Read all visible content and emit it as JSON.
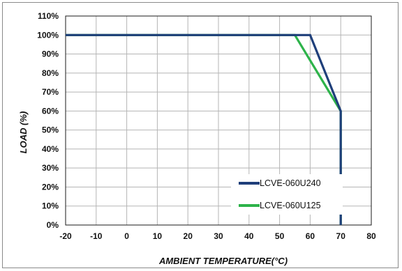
{
  "chart_data": {
    "type": "line",
    "title": "",
    "xlabel": "AMBIENT TEMPERATURE(°C)",
    "ylabel": "LOAD (%)",
    "xlim": [
      -20,
      80
    ],
    "ylim": [
      0,
      110
    ],
    "x_ticks": [
      -20,
      -10,
      0,
      10,
      20,
      30,
      40,
      50,
      60,
      70,
      80
    ],
    "y_ticks": [
      0,
      10,
      20,
      30,
      40,
      50,
      60,
      70,
      80,
      90,
      100,
      110
    ],
    "y_tick_suffix": "%",
    "grid": true,
    "legend_position": "bottom-right",
    "series": [
      {
        "name": "LCVE-060U240",
        "color": "#1f3f7a",
        "points": [
          [
            -20,
            100
          ],
          [
            60,
            100
          ],
          [
            70,
            60
          ],
          [
            70,
            0
          ]
        ]
      },
      {
        "name": "LCVE-060U125",
        "color": "#2db34a",
        "points": [
          [
            -20,
            100
          ],
          [
            55,
            100
          ],
          [
            70,
            60
          ],
          [
            70,
            0
          ]
        ]
      }
    ]
  }
}
